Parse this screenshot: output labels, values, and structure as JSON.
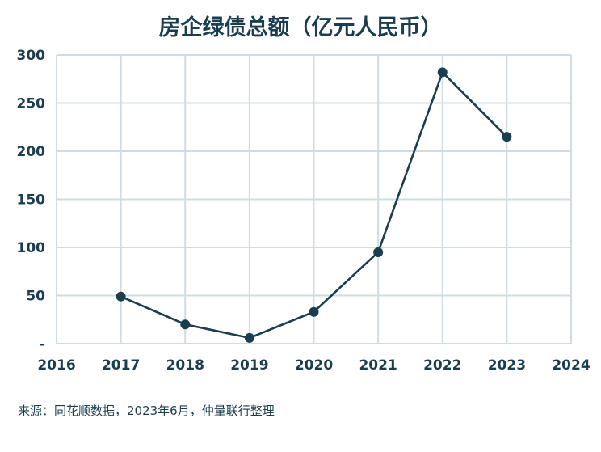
{
  "chart_data": {
    "type": "line",
    "title": "房企绿债总额（亿元人民币）",
    "xlabel": "",
    "ylabel": "",
    "x": [
      2017,
      2018,
      2019,
      2020,
      2021,
      2022,
      2023
    ],
    "values": [
      49,
      20,
      6,
      33,
      95,
      282,
      215
    ],
    "x_ticks": [
      "2016",
      "2017",
      "2018",
      "2019",
      "2020",
      "2021",
      "2022",
      "2023",
      "2024"
    ],
    "y_ticks": [
      "-",
      "50",
      "100",
      "150",
      "200",
      "250",
      "300"
    ],
    "xlim": [
      2016,
      2024
    ],
    "ylim": [
      0,
      300
    ],
    "grid": true,
    "line_color": "#1a3d4f",
    "grid_color": "#cfdce5"
  },
  "source": "来源：同花顺数据，2023年6月，仲量联行整理"
}
